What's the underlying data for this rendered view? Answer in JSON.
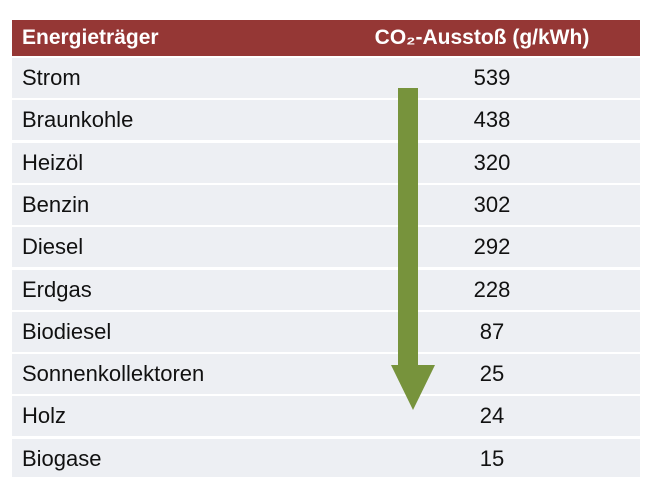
{
  "table": {
    "header": [
      "Energieträger",
      "CO₂-Ausstoß (g/kWh)"
    ],
    "rows": [
      [
        "Strom",
        539
      ],
      [
        "Braunkohle",
        438
      ],
      [
        "Heizöl",
        320
      ],
      [
        "Benzin",
        302
      ],
      [
        "Diesel",
        292
      ],
      [
        "Erdgas",
        228
      ],
      [
        "Biodiesel",
        87
      ],
      [
        "Sonnenkollektoren",
        25
      ],
      [
        "Holz",
        24
      ],
      [
        "Biogase",
        15
      ]
    ]
  }
}
